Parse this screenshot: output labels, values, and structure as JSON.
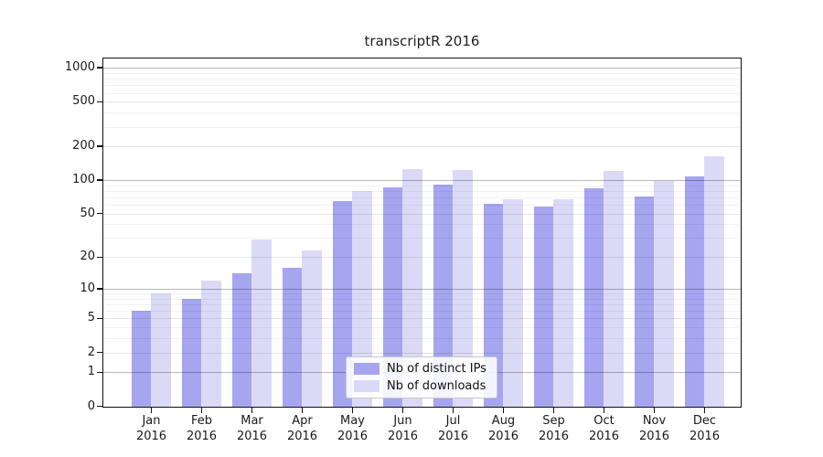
{
  "chart_data": {
    "type": "bar",
    "title": "transcriptR 2016",
    "year_label": "2016",
    "months": [
      "Jan",
      "Feb",
      "Mar",
      "Apr",
      "May",
      "Jun",
      "Jul",
      "Aug",
      "Sep",
      "Oct",
      "Nov",
      "Dec"
    ],
    "series": [
      {
        "name": "Nb of distinct IPs",
        "color": "#a5a5f0",
        "values": [
          6,
          8,
          14,
          16,
          65,
          86,
          91,
          61,
          58,
          84,
          71,
          109
        ]
      },
      {
        "name": "Nb of downloads",
        "color": "#dadaf7",
        "values": [
          9,
          12,
          29,
          23,
          80,
          126,
          124,
          68,
          67,
          121,
          98,
          164
        ]
      }
    ],
    "y_ticks": [
      0,
      1,
      2,
      5,
      10,
      20,
      50,
      100,
      200,
      500,
      1000
    ],
    "y_scale": "log1p",
    "ylim": [
      0,
      1200
    ],
    "grid": true,
    "legend_position": "lower-center"
  }
}
